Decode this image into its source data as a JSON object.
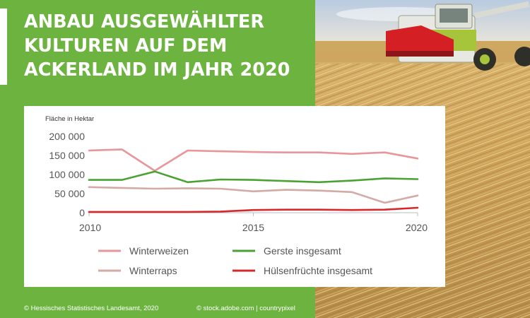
{
  "title": "ANBAU AUSGEWÄHLTER KULTUREN AUF DEM ACKERLAND IM JAHR 2020",
  "title_lines": [
    "ANBAU AUSGEWÄHLTER",
    "KULTUREN AUF DEM",
    "ACKERLAND IM JAHR 2020"
  ],
  "footer": {
    "left": "© Hessisches Statistisches Landesamt, 2020",
    "right": "© stock.adobe.com | countrypixel"
  },
  "colors": {
    "panel_green": "#6db33f",
    "winterweizen": "#e8969a",
    "gerste": "#4aa233",
    "winterraps": "#d4aaa6",
    "huelsenfruechte": "#d42a2e"
  },
  "chart_data": {
    "type": "line",
    "ylabel": "Fläche in Hektar",
    "xlabel": "",
    "ylim": [
      0,
      200000
    ],
    "yticks": [
      0,
      50000,
      100000,
      150000,
      200000
    ],
    "ytick_labels": [
      "0",
      "50 000",
      "100 000",
      "150 000",
      "200 000"
    ],
    "xticks": [
      2010,
      2015,
      2020
    ],
    "x": [
      2010,
      2011,
      2012,
      2013,
      2014,
      2015,
      2016,
      2017,
      2018,
      2019,
      2020
    ],
    "legend_position": "bottom",
    "grid": false,
    "series": [
      {
        "name": "Winterweizen",
        "color": "#e8969a",
        "values": [
          163000,
          166000,
          110000,
          163000,
          161000,
          159000,
          158000,
          158000,
          154000,
          158000,
          142000
        ]
      },
      {
        "name": "Gerste insgesamt",
        "color": "#4aa233",
        "values": [
          86000,
          86000,
          108000,
          80000,
          87000,
          86000,
          83000,
          80000,
          84000,
          90000,
          88000
        ]
      },
      {
        "name": "Winterraps",
        "color": "#d4aaa6",
        "values": [
          67000,
          65000,
          63000,
          64000,
          63000,
          56000,
          60000,
          58000,
          54000,
          26000,
          45000
        ]
      },
      {
        "name": "Hülsenfrüchte insgesamt",
        "color": "#d42a2e",
        "values": [
          2000,
          2000,
          2000,
          2000,
          3000,
          7000,
          8000,
          8000,
          7000,
          8000,
          13000
        ]
      }
    ]
  }
}
